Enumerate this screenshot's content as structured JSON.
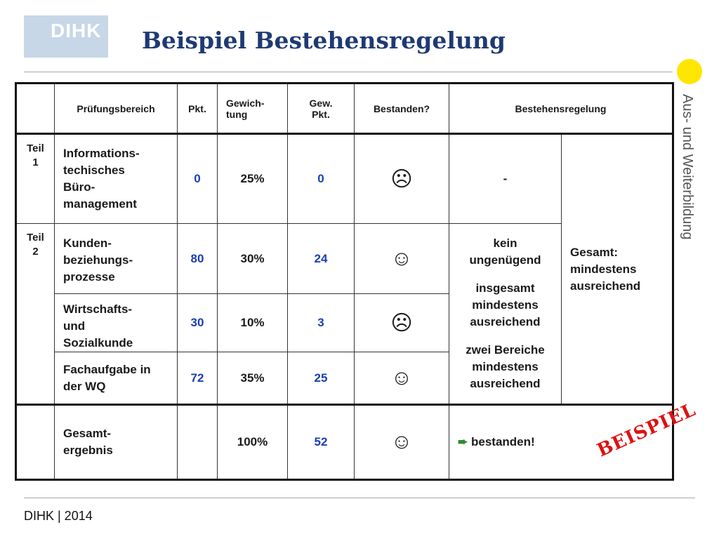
{
  "header": {
    "logo_text": "DIHK",
    "title": "Beispiel Bestehensregelung",
    "side_text": "Aus- und Weiterbildung"
  },
  "table": {
    "columns": [
      "Prüfungsbereich",
      "Pkt.",
      "Gewich-\ntung",
      "Gew.\nPkt.",
      "Bestanden?",
      "Bestehensregelung"
    ],
    "rows": [
      {
        "teil": "Teil\n1",
        "area": "Informations-\ntechisches\nBüro-\nmanagement",
        "pkt": "0",
        "gewichtung": "25%",
        "gew_pkt": "0",
        "bestanden": "sad"
      },
      {
        "teil": "Teil\n2",
        "area": "Kunden-\n beziehungs-\n prozesse",
        "pkt": "80",
        "gewichtung": "30%",
        "gew_pkt": "24",
        "bestanden": "happy"
      },
      {
        "teil": "",
        "area": "Wirtschafts-\nund\nSozialkunde",
        "pkt": "30",
        "gewichtung": "10%",
        "gew_pkt": "3",
        "bestanden": "sad"
      },
      {
        "teil": "",
        "area": "Fachaufgabe in\nder WQ",
        "pkt": "72",
        "gewichtung": "35%",
        "gew_pkt": "25",
        "bestanden": "happy"
      }
    ],
    "rule_teil1": "-",
    "rule_teil2": [
      "kein",
      "ungenügend",
      "",
      "insgesamt",
      "mindestens",
      "ausreichend",
      "",
      "zwei Bereiche",
      "mindestens",
      "ausreichend"
    ],
    "rule_gesamt": [
      "Gesamt:",
      "mindestens",
      "ausreichend"
    ],
    "total": {
      "area": "Gesamt-\nergebnis",
      "pkt": "",
      "gewichtung": "100%",
      "gew_pkt": "52",
      "bestanden": "happy",
      "result": "bestanden!"
    }
  },
  "stamp": "BEISPIEL",
  "footer": "DIHK | 2014",
  "colors": {
    "title": "#1f3a73",
    "number": "#1a3fb0",
    "sad_face": "#c00000",
    "happy_face": "#2e8b2e",
    "stamp": "#dd1111",
    "accent_dot": "#ffe600",
    "logo_bg": "#c7d7e8"
  },
  "icons": {
    "sad": "sad-face-icon",
    "happy": "happy-face-icon",
    "arrow": "right-arrow-icon"
  }
}
